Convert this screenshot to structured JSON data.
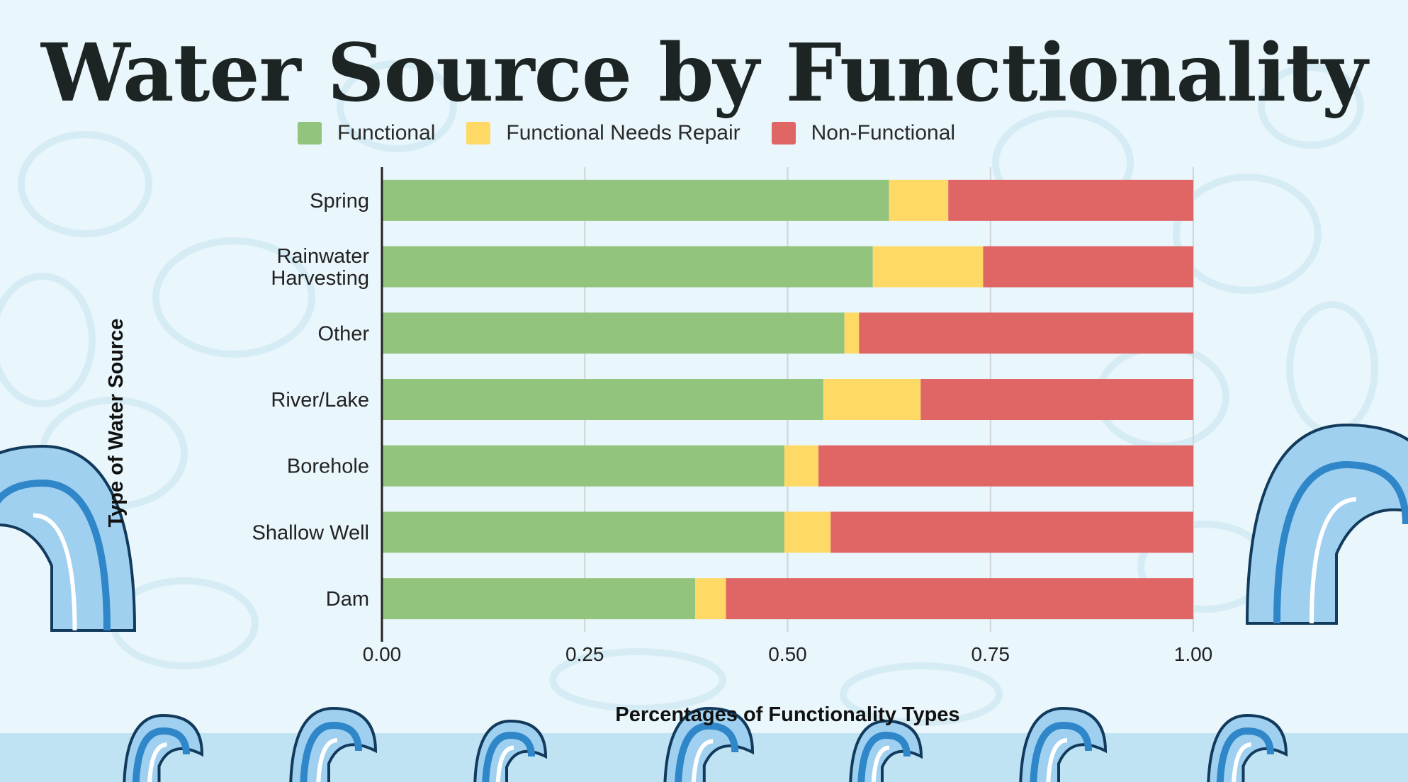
{
  "chart_data": {
    "type": "bar",
    "orientation": "horizontal",
    "stacked": true,
    "title": "Water Source by Functionality",
    "xlabel": "Percentages of Functionality Types",
    "ylabel": "Type of Water Source",
    "xlim": [
      0,
      1
    ],
    "xticks": [
      "0.00",
      "0.25",
      "0.50",
      "0.75",
      "1.00"
    ],
    "grid": true,
    "legend_position": "top",
    "categories": [
      "Spring",
      "Rainwater Harvesting",
      "Other",
      "River/Lake",
      "Borehole",
      "Shallow Well",
      "Dam"
    ],
    "category_lines": [
      [
        "Spring"
      ],
      [
        "Rainwater",
        "Harvesting"
      ],
      [
        "Other"
      ],
      [
        "River/Lake"
      ],
      [
        "Borehole"
      ],
      [
        "Shallow Well"
      ],
      [
        "Dam"
      ]
    ],
    "series": [
      {
        "name": "Functional",
        "color": "#93c47d",
        "values": [
          0.625,
          0.605,
          0.57,
          0.544,
          0.496,
          0.496,
          0.386
        ]
      },
      {
        "name": "Functional Needs Repair",
        "color": "#ffd966",
        "values": [
          0.073,
          0.136,
          0.018,
          0.12,
          0.042,
          0.057,
          0.038
        ]
      },
      {
        "name": "Non-Functional",
        "color": "#e06666",
        "values": [
          0.302,
          0.259,
          0.412,
          0.336,
          0.462,
          0.447,
          0.576
        ]
      }
    ]
  }
}
